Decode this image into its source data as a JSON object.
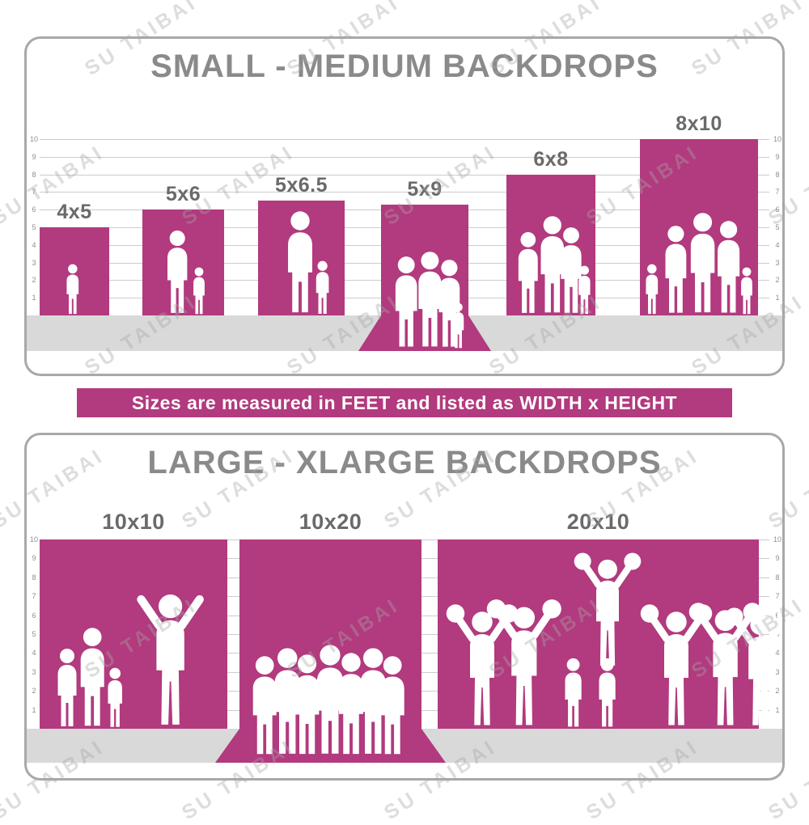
{
  "watermark": {
    "text": "SU TAIBAI"
  },
  "colors": {
    "magenta": "#b23a7e",
    "title_gray": "#8a8a8a",
    "label_gray": "#6a6a6a",
    "floor_gray": "#d9d9d9",
    "ruler_line": "#cccccc",
    "tick_gray": "#8f8f8f",
    "panel_border": "#a8a8a8",
    "silhouette": "#ffffff"
  },
  "banner": {
    "text": "Sizes are measured in FEET and listed as WIDTH x HEIGHT"
  },
  "ruler": {
    "ticks": [
      "1",
      "2",
      "3",
      "4",
      "5",
      "6",
      "7",
      "8",
      "9",
      "10"
    ]
  },
  "panels": [
    {
      "title": "SMALL - MEDIUM BACKDROPS",
      "bars": [
        {
          "label": "4x5",
          "width_ft": 4,
          "height_ft": 5,
          "floor_sweep": false
        },
        {
          "label": "5x6",
          "width_ft": 5,
          "height_ft": 6,
          "floor_sweep": false
        },
        {
          "label": "5x6.5",
          "width_ft": 5,
          "height_ft": 6.5,
          "floor_sweep": false
        },
        {
          "label": "5x9",
          "width_ft": 5,
          "height_ft": 9,
          "floor_sweep": true
        },
        {
          "label": "6x8",
          "width_ft": 6,
          "height_ft": 8,
          "floor_sweep": false
        },
        {
          "label": "8x10",
          "width_ft": 8,
          "height_ft": 10,
          "floor_sweep": false
        }
      ]
    },
    {
      "title": "LARGE - XLARGE BACKDROPS",
      "bars": [
        {
          "label": "10x10",
          "width_ft": 10,
          "height_ft": 10,
          "floor_sweep": false
        },
        {
          "label": "10x20",
          "width_ft": 10,
          "height_ft": 20,
          "floor_sweep": true
        },
        {
          "label": "20x10",
          "width_ft": 20,
          "height_ft": 10,
          "floor_sweep": false
        }
      ]
    }
  ],
  "chart_data": [
    {
      "type": "bar",
      "title": "SMALL - MEDIUM BACKDROPS",
      "categories": [
        "4x5",
        "5x6",
        "5x6.5",
        "5x9",
        "6x8",
        "8x10"
      ],
      "series": [
        {
          "name": "width_ft",
          "values": [
            4,
            5,
            5,
            5,
            6,
            8
          ]
        },
        {
          "name": "height_ft",
          "values": [
            5,
            6,
            6.5,
            9,
            8,
            10
          ]
        }
      ],
      "xlabel": "",
      "ylabel": "feet",
      "ylim": [
        0,
        10
      ],
      "grid": true,
      "legend_position": "none",
      "annotations": [
        "Sizes listed as WIDTH x HEIGHT in feet; 5x9 is drawn with a floor sweep onto the ground"
      ]
    },
    {
      "type": "bar",
      "title": "LARGE - XLARGE BACKDROPS",
      "categories": [
        "10x10",
        "10x20",
        "20x10"
      ],
      "series": [
        {
          "name": "width_ft",
          "values": [
            10,
            10,
            20
          ]
        },
        {
          "name": "height_ft",
          "values": [
            10,
            20,
            10
          ]
        }
      ],
      "xlabel": "",
      "ylabel": "feet",
      "ylim": [
        0,
        10
      ],
      "grid": true,
      "legend_position": "none",
      "annotations": [
        "10x20 is drawn with a floor sweep onto the ground"
      ]
    }
  ]
}
